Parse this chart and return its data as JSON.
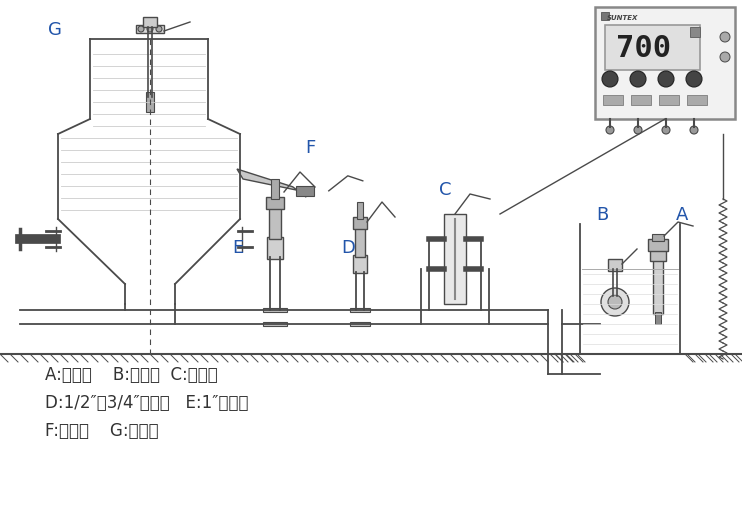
{
  "bg_color": "#ffffff",
  "line_color": "#4a4a4a",
  "label_color": "#2255aa",
  "text_color": "#333333",
  "legend_lines": [
    "A:沉入式    B:浮动式  C:引流式",
    "D:1/2″、3/4″管路式   E:1″管路式",
    "F:侧插式    G:顶插式"
  ]
}
